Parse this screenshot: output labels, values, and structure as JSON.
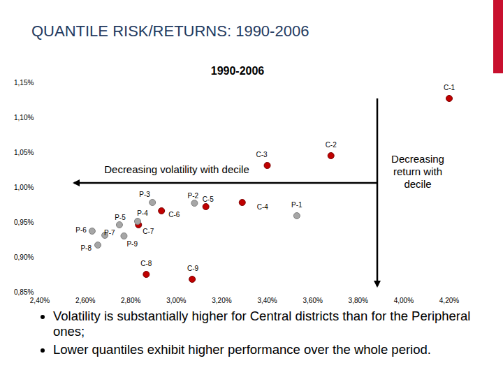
{
  "header": {
    "title": "QUANTILE RISK/RETURNS: 1990-2006"
  },
  "chart_data": {
    "type": "scatter",
    "title": "1990-2006",
    "xlim": [
      2.4,
      4.2
    ],
    "ylim": [
      0.85,
      1.15
    ],
    "xticks": [
      {
        "value": 2.4,
        "label": "2,40%"
      },
      {
        "value": 2.6,
        "label": "2,60%"
      },
      {
        "value": 2.8,
        "label": "2,80%"
      },
      {
        "value": 3.0,
        "label": "3,00%"
      },
      {
        "value": 3.2,
        "label": "3,20%"
      },
      {
        "value": 3.4,
        "label": "3,40%"
      },
      {
        "value": 3.6,
        "label": "3,60%"
      },
      {
        "value": 3.8,
        "label": "3,80%"
      },
      {
        "value": 4.0,
        "label": "4,00%"
      },
      {
        "value": 4.2,
        "label": "4,20%"
      }
    ],
    "yticks": [
      {
        "value": 0.85,
        "label": "0,85%"
      },
      {
        "value": 0.9,
        "label": "0,90%"
      },
      {
        "value": 0.95,
        "label": "0,95%"
      },
      {
        "value": 1.0,
        "label": "1,00%"
      },
      {
        "value": 1.05,
        "label": "1,05%"
      },
      {
        "value": 1.1,
        "label": "1,10%"
      },
      {
        "value": 1.15,
        "label": "1,15%"
      }
    ],
    "grid": false,
    "series": [
      {
        "color": "#c00000",
        "marker": "circle",
        "labels": [
          "C-1",
          "C-2",
          "C-3",
          "C-4",
          "C-5",
          "C-6",
          "C-7",
          "C-8",
          "C-9"
        ],
        "x": [
          4.2,
          3.68,
          3.4,
          3.29,
          3.13,
          2.935,
          2.834,
          2.868,
          3.07
        ],
        "values": [
          1.127,
          1.045,
          1.031,
          0.978,
          0.972,
          0.966,
          0.946,
          0.875,
          0.868
        ]
      },
      {
        "color": "#a6a6a6",
        "marker": "circle",
        "labels": [
          "P-1",
          "P-2",
          "P-3",
          "P-4",
          "P-5",
          "P-6",
          "P-7",
          "P-8",
          "P-9"
        ],
        "x": [
          3.53,
          3.08,
          2.895,
          2.83,
          2.75,
          2.63,
          2.686,
          2.655,
          2.77
        ],
        "values": [
          0.959,
          0.977,
          0.978,
          0.951,
          0.946,
          0.937,
          0.931,
          0.917,
          0.93
        ]
      }
    ],
    "annotations": [
      {
        "text": "Decreasing volatility with decile"
      },
      {
        "text": "Decreasing return with decile"
      }
    ]
  },
  "bullets": [
    "Volatility is substantially higher for Central districts than for the Peripheral ones;",
    "Lower quantiles exhibit higher performance over the whole period."
  ]
}
